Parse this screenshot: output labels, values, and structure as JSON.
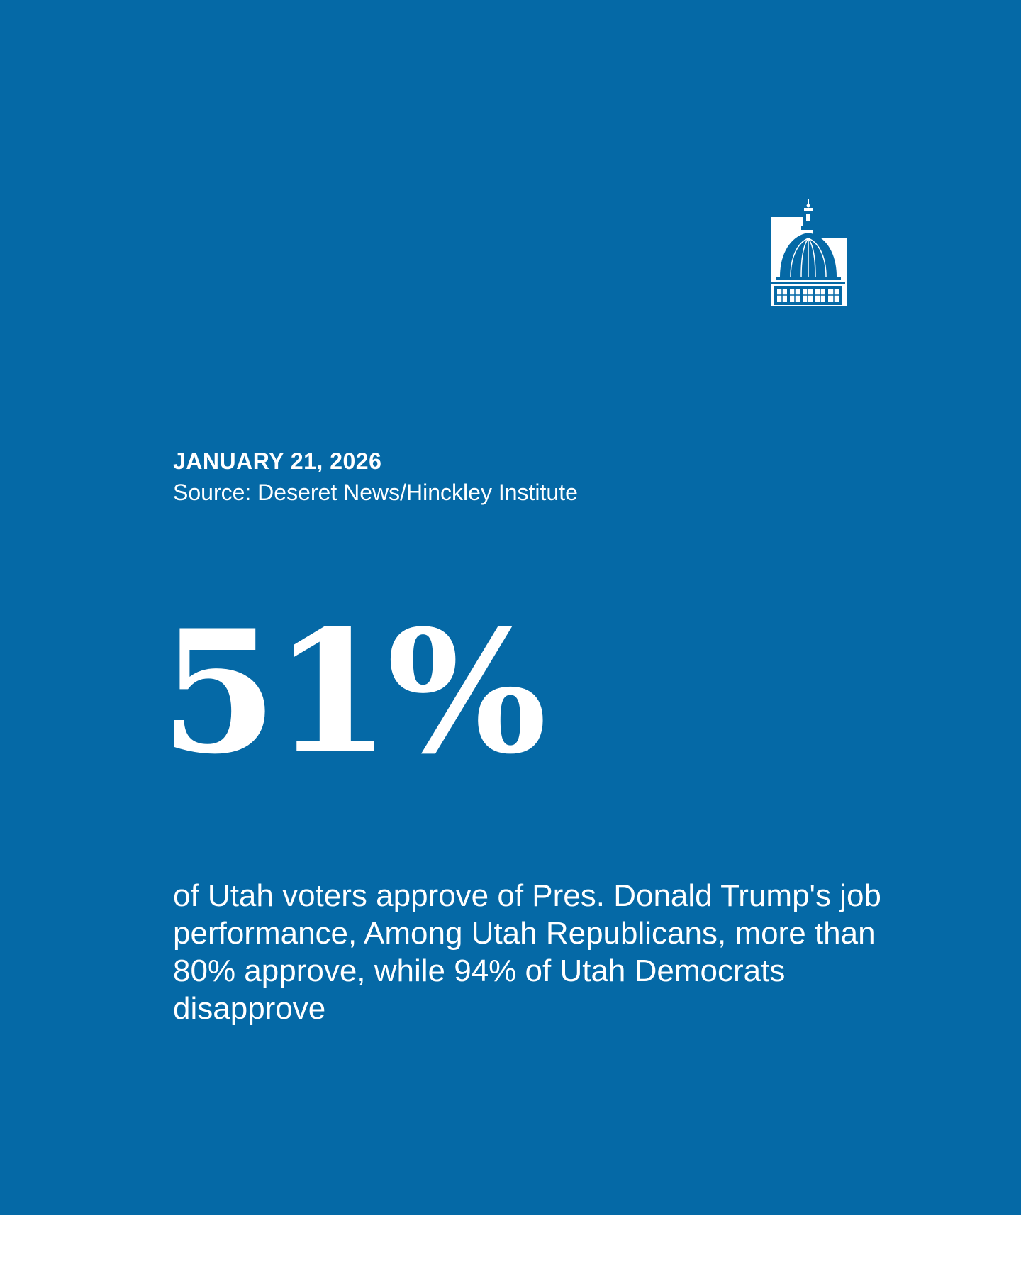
{
  "card": {
    "background_color": "#0569a6",
    "text_color": "#ffffff"
  },
  "logo": {
    "icon": "capitol-dome-icon"
  },
  "header": {
    "date": "JANUARY 21, 2026",
    "source": "Source: Deseret News/Hinckley Institute"
  },
  "stat": {
    "value": "51%",
    "description": "of Utah voters approve of Pres. Donald Trump's job performance, Among Utah Republicans, more than 80% approve, while 94% of Utah Democrats disapprove"
  }
}
